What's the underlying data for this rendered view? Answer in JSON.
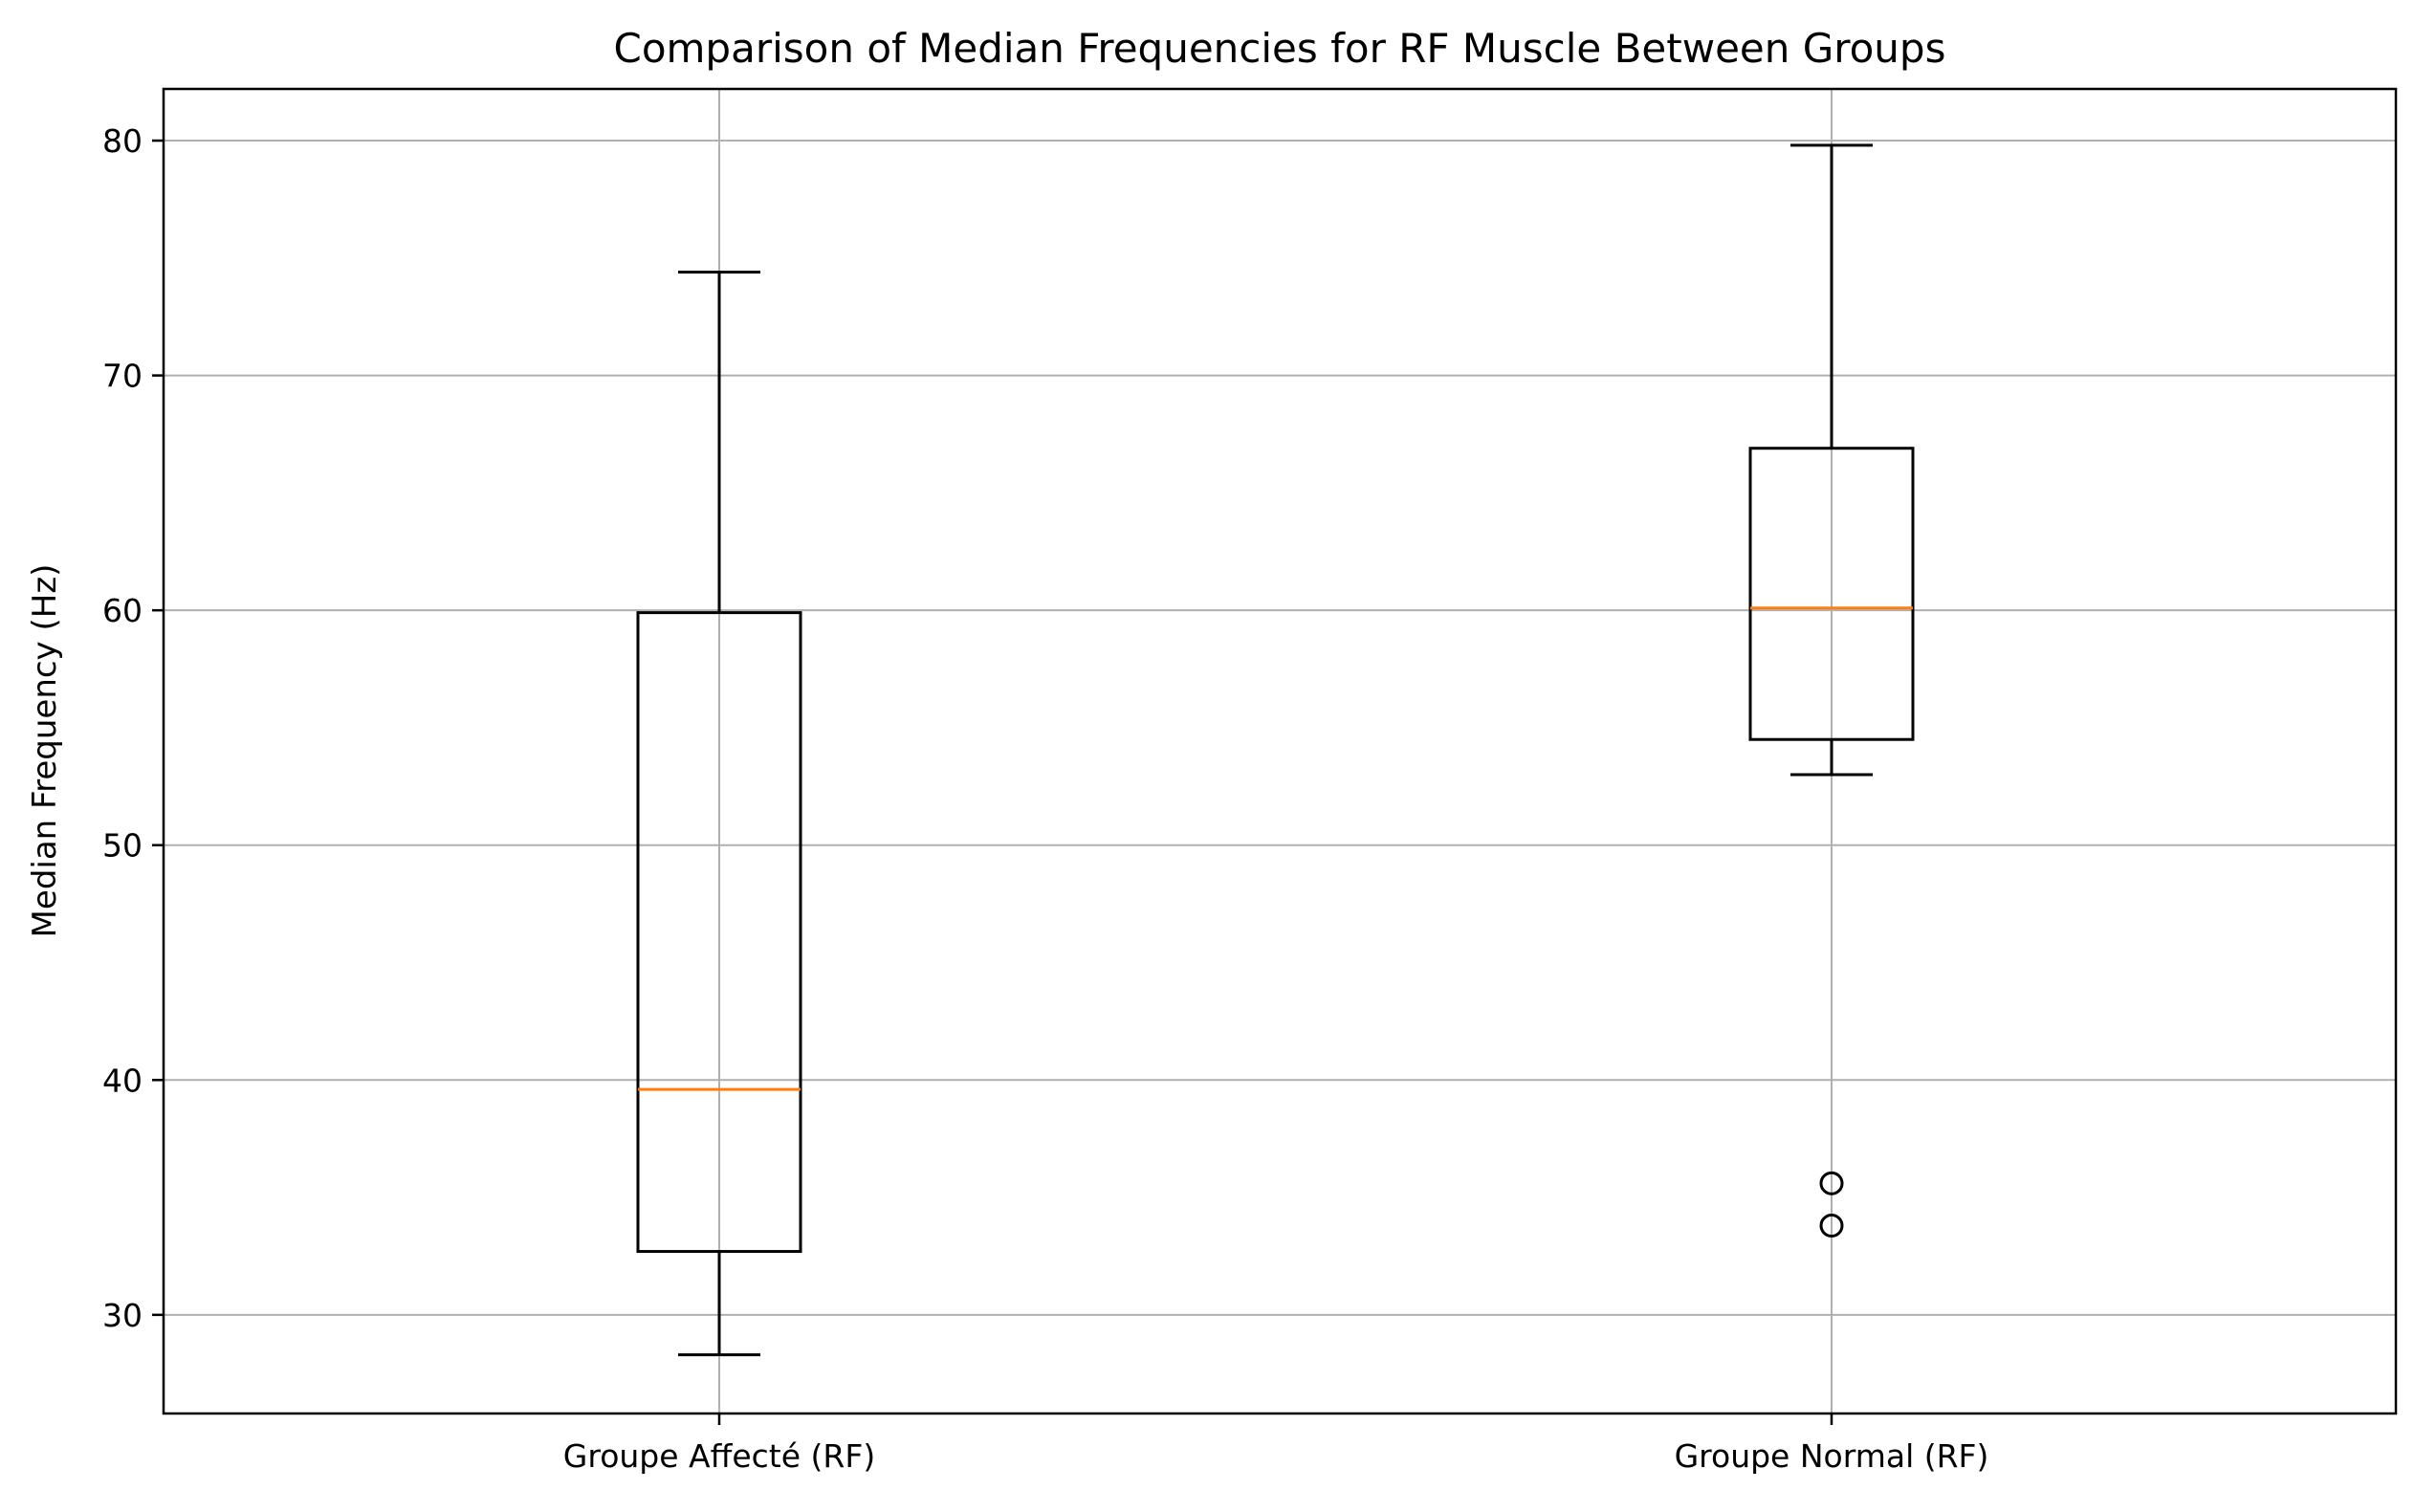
{
  "chart_data": {
    "type": "box",
    "title": "Comparison of Median Frequencies for RF Muscle Between Groups",
    "xlabel": "",
    "ylabel": "Median Frequency (Hz)",
    "ylim": [
      25.8,
      82.2
    ],
    "yticks": [
      30,
      40,
      50,
      60,
      70,
      80
    ],
    "grid": true,
    "categories": [
      "Groupe Affecté (RF)",
      "Groupe Normal (RF)"
    ],
    "boxes": [
      {
        "category": "Groupe Affecté (RF)",
        "whisker_low": 28.3,
        "q1": 32.7,
        "median": 39.6,
        "q3": 59.9,
        "whisker_high": 74.4,
        "outliers": []
      },
      {
        "category": "Groupe Normal (RF)",
        "whisker_low": 53.0,
        "q1": 54.5,
        "median": 60.1,
        "q3": 66.9,
        "whisker_high": 79.8,
        "outliers": [
          35.6,
          33.8
        ]
      }
    ],
    "colors": {
      "box": "#000000",
      "median": "#ff7f0e",
      "grid": "#b0b0b0",
      "outlier": "#000000"
    }
  }
}
